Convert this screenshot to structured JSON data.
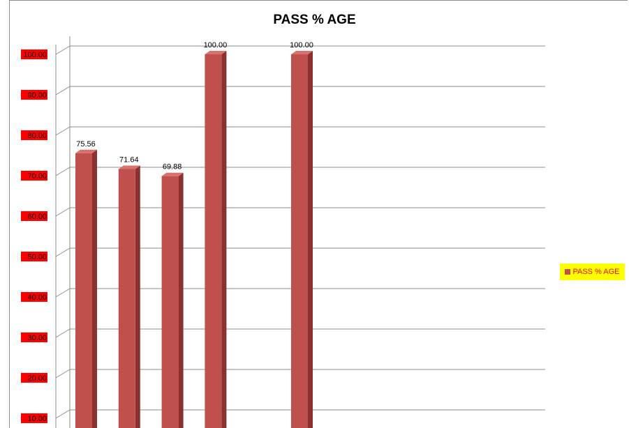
{
  "chart_data": {
    "type": "bar",
    "title": "PASS % AGE",
    "categories": [
      "",
      "",
      "",
      "",
      "",
      ""
    ],
    "series": [
      {
        "name": "PASS % AGE",
        "values": [
          75.56,
          71.64,
          69.88,
          100.0,
          null,
          100.0
        ]
      }
    ],
    "data_labels": [
      "75.56",
      "71.64",
      "69.88",
      "100.00",
      "",
      "100.00"
    ],
    "y_ticks": [
      "10.00",
      "20.00",
      "30.00",
      "40.00",
      "50.00",
      "60.00",
      "70.00",
      "80.00",
      "90.00",
      "100.00"
    ],
    "ylim": [
      0,
      100
    ],
    "grid": true,
    "legend_position": "right",
    "colors": {
      "bar": "#c0504d",
      "bar_side": "#8b3230",
      "bar_top": "#d9716e",
      "tick_label_bg": "#ff0000",
      "legend_bg": "#ffff00",
      "legend_text": "#ff0000"
    }
  }
}
